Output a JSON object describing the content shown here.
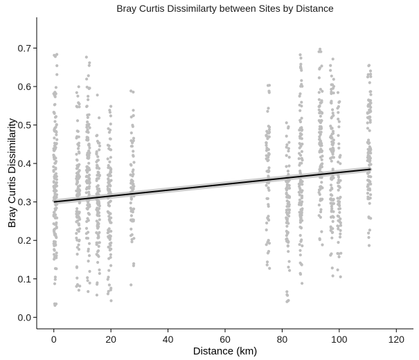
{
  "chart_data": {
    "type": "scatter",
    "title": "Bray Curtis Dissimilarty between Sites by Distance",
    "xlabel": "Distance (km)",
    "ylabel": "Bray Curtis Dissimilarity",
    "xlim": [
      -6,
      126
    ],
    "ylim": [
      -0.03,
      0.78
    ],
    "x_ticks": [
      0,
      20,
      40,
      60,
      80,
      100,
      120
    ],
    "y_ticks": [
      0.0,
      0.1,
      0.2,
      0.3,
      0.4,
      0.5,
      0.6,
      0.7
    ],
    "grid": false,
    "point_color": "#bebebe",
    "trend_color": "#000000",
    "band_color": "#c8c8c8",
    "trend": {
      "x": [
        0,
        111
      ],
      "y": [
        0.3,
        0.385
      ],
      "se": 0.007
    },
    "clusters": [
      {
        "x": 0.5,
        "ymin": 0.01,
        "ymax": 0.71,
        "count": 150
      },
      {
        "x": 8.5,
        "ymin": 0.07,
        "ymax": 0.6,
        "count": 120
      },
      {
        "x": 12.0,
        "ymin": 0.04,
        "ymax": 0.7,
        "count": 110
      },
      {
        "x": 15.5,
        "ymin": 0.05,
        "ymax": 0.58,
        "count": 100
      },
      {
        "x": 19.5,
        "ymin": 0.01,
        "ymax": 0.56,
        "count": 110
      },
      {
        "x": 27.5,
        "ymin": 0.08,
        "ymax": 0.59,
        "count": 70
      },
      {
        "x": 75.0,
        "ymin": 0.11,
        "ymax": 0.64,
        "count": 70
      },
      {
        "x": 82.0,
        "ymin": 0.04,
        "ymax": 0.55,
        "count": 90
      },
      {
        "x": 86.5,
        "ymin": 0.06,
        "ymax": 0.69,
        "count": 110
      },
      {
        "x": 93.5,
        "ymin": 0.18,
        "ymax": 0.71,
        "count": 100
      },
      {
        "x": 97.5,
        "ymin": 0.09,
        "ymax": 0.72,
        "count": 100
      },
      {
        "x": 100.0,
        "ymin": 0.01,
        "ymax": 0.6,
        "count": 60
      },
      {
        "x": 110.5,
        "ymin": 0.18,
        "ymax": 0.73,
        "count": 110
      }
    ]
  }
}
